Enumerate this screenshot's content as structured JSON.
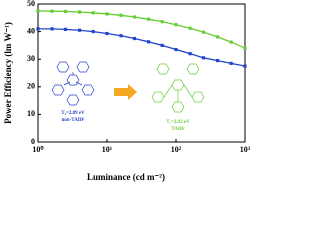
{
  "chart_data": {
    "type": "line",
    "x_label": "Luminance (cd m⁻²)",
    "y_label": "Power Efficiency (lm W⁻¹)",
    "x_scale": "log",
    "xlim": [
      1,
      1000
    ],
    "xticks": [
      {
        "value": 1,
        "label": "10⁰"
      },
      {
        "value": 10,
        "label": "10¹"
      },
      {
        "value": 100,
        "label": "10²"
      },
      {
        "value": 1000,
        "label": "10³"
      }
    ],
    "ylim": [
      0,
      50
    ],
    "yticks": [
      0,
      10,
      20,
      30,
      40,
      50
    ],
    "x": [
      1,
      1.6,
      2.5,
      4,
      6.3,
      10,
      16,
      25,
      40,
      63,
      100,
      160,
      250,
      400,
      630,
      1000
    ],
    "series": [
      {
        "color": "#66cc33",
        "values": [
          47.5,
          47.4,
          47.3,
          47.1,
          46.8,
          46.4,
          45.9,
          45.3,
          44.5,
          43.6,
          42.5,
          41.2,
          39.8,
          38.1,
          36.2,
          34
        ]
      },
      {
        "color": "#2244cc",
        "values": [
          41,
          41,
          40.8,
          40.5,
          40,
          39.3,
          38.5,
          37.5,
          36.3,
          35,
          33.5,
          32,
          30.5,
          29.5,
          28.5,
          27.5
        ]
      }
    ],
    "annotations": [
      {
        "text": "T₁=2.89 eV",
        "color": "#2244cc"
      },
      {
        "text": "non-TADF",
        "color": "#2244cc"
      },
      {
        "text": "T₁=2.92 eV",
        "color": "#66cc33"
      },
      {
        "text": "TADF",
        "color": "#66cc33"
      }
    ]
  }
}
